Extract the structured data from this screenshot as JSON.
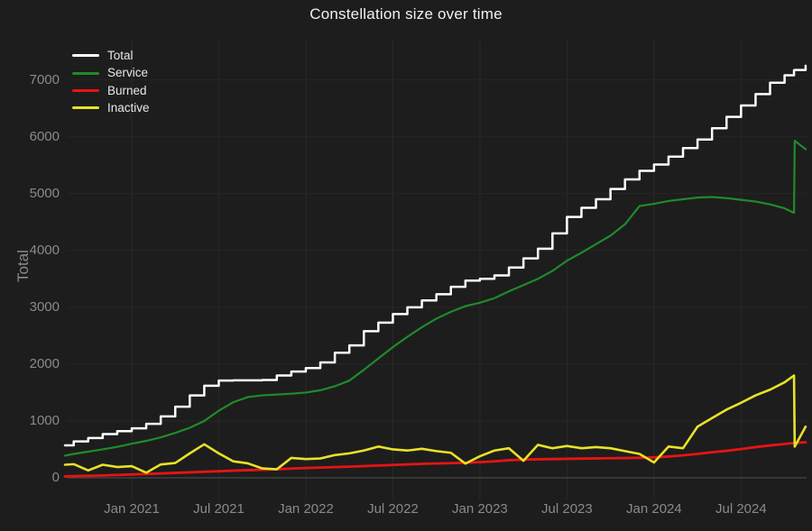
{
  "chart_data": {
    "type": "line",
    "title": "Constellation size over time",
    "xlabel": "",
    "ylabel": "Total",
    "background": "#1d1d1d",
    "grid": true,
    "legend_position": "top-left",
    "x_unit": "months since 2020-08",
    "x_range_note": "data spans mid-Aug 2020 to mid-Nov 2024",
    "ylim": [
      0,
      7450
    ],
    "x": [
      0.4,
      1,
      2,
      3,
      4,
      5,
      6,
      7,
      8,
      9,
      10,
      11,
      12,
      13,
      14,
      15,
      16,
      17,
      18,
      19,
      20,
      21,
      22,
      23,
      24,
      25,
      26,
      27,
      28,
      29,
      30,
      31,
      32,
      33,
      34,
      35,
      36,
      37,
      38,
      39,
      40,
      41,
      42,
      43,
      44,
      45,
      46,
      47,
      48,
      49,
      50,
      50.65,
      50.7,
      51.45
    ],
    "x_ticks": [
      {
        "m": 5,
        "label": "Jan 2021"
      },
      {
        "m": 11,
        "label": "Jul 2021"
      },
      {
        "m": 17,
        "label": "Jan 2022"
      },
      {
        "m": 23,
        "label": "Jul 2022"
      },
      {
        "m": 29,
        "label": "Jan 2023"
      },
      {
        "m": 35,
        "label": "Jul 2023"
      },
      {
        "m": 41,
        "label": "Jan 2024"
      },
      {
        "m": 47,
        "label": "Jul 2024"
      }
    ],
    "y_ticks": [
      {
        "v": 0,
        "label": "0"
      },
      {
        "v": 1000,
        "label": "1000"
      },
      {
        "v": 2000,
        "label": "2000"
      },
      {
        "v": 3000,
        "label": "3000"
      },
      {
        "v": 4000,
        "label": "4000"
      },
      {
        "v": 5000,
        "label": "5000"
      },
      {
        "v": 6000,
        "label": "6000"
      },
      {
        "v": 7000,
        "label": "7000"
      }
    ],
    "series": [
      {
        "name": "Total",
        "color": "#ffffff",
        "line_shape": "step",
        "width": 2.5,
        "values": [
          570,
          640,
          700,
          770,
          820,
          870,
          950,
          1080,
          1250,
          1450,
          1620,
          1710,
          1715,
          1715,
          1720,
          1800,
          1870,
          1930,
          2030,
          2200,
          2330,
          2580,
          2730,
          2880,
          3000,
          3120,
          3230,
          3360,
          3470,
          3500,
          3560,
          3700,
          3860,
          4030,
          4300,
          4590,
          4750,
          4900,
          5080,
          5250,
          5400,
          5510,
          5650,
          5800,
          5950,
          6150,
          6350,
          6550,
          6750,
          6950,
          7080,
          7170,
          7175,
          7250
        ]
      },
      {
        "name": "Service",
        "color": "#1f8b2b",
        "line_shape": "linear",
        "width": 2.2,
        "values": [
          390,
          420,
          460,
          500,
          545,
          600,
          650,
          710,
          790,
          880,
          1000,
          1180,
          1330,
          1420,
          1450,
          1465,
          1480,
          1500,
          1540,
          1610,
          1710,
          1900,
          2100,
          2300,
          2480,
          2650,
          2800,
          2920,
          3020,
          3080,
          3160,
          3280,
          3390,
          3500,
          3640,
          3820,
          3960,
          4110,
          4260,
          4460,
          4780,
          4820,
          4870,
          4900,
          4930,
          4940,
          4920,
          4890,
          4860,
          4810,
          4740,
          4660,
          5930,
          5780
        ]
      },
      {
        "name": "Burned",
        "color": "#e61414",
        "line_shape": "linear",
        "width": 2.8,
        "values": [
          25,
          30,
          35,
          42,
          50,
          60,
          68,
          76,
          86,
          96,
          106,
          116,
          126,
          134,
          142,
          152,
          162,
          172,
          180,
          188,
          196,
          206,
          216,
          226,
          236,
          246,
          252,
          258,
          265,
          275,
          290,
          310,
          320,
          326,
          330,
          334,
          338,
          342,
          345,
          348,
          352,
          360,
          375,
          395,
          420,
          450,
          475,
          505,
          540,
          570,
          595,
          612,
          615,
          625
        ]
      },
      {
        "name": "Inactive",
        "color": "#e8e228",
        "line_shape": "linear",
        "width": 2.6,
        "values": [
          230,
          240,
          130,
          230,
          190,
          205,
          90,
          235,
          260,
          430,
          590,
          430,
          290,
          255,
          165,
          150,
          350,
          330,
          340,
          400,
          430,
          480,
          550,
          500,
          480,
          510,
          470,
          440,
          250,
          380,
          480,
          520,
          300,
          580,
          520,
          560,
          520,
          540,
          520,
          470,
          420,
          270,
          550,
          520,
          900,
          1050,
          1200,
          1320,
          1450,
          1550,
          1680,
          1800,
          550,
          900
        ]
      }
    ]
  }
}
